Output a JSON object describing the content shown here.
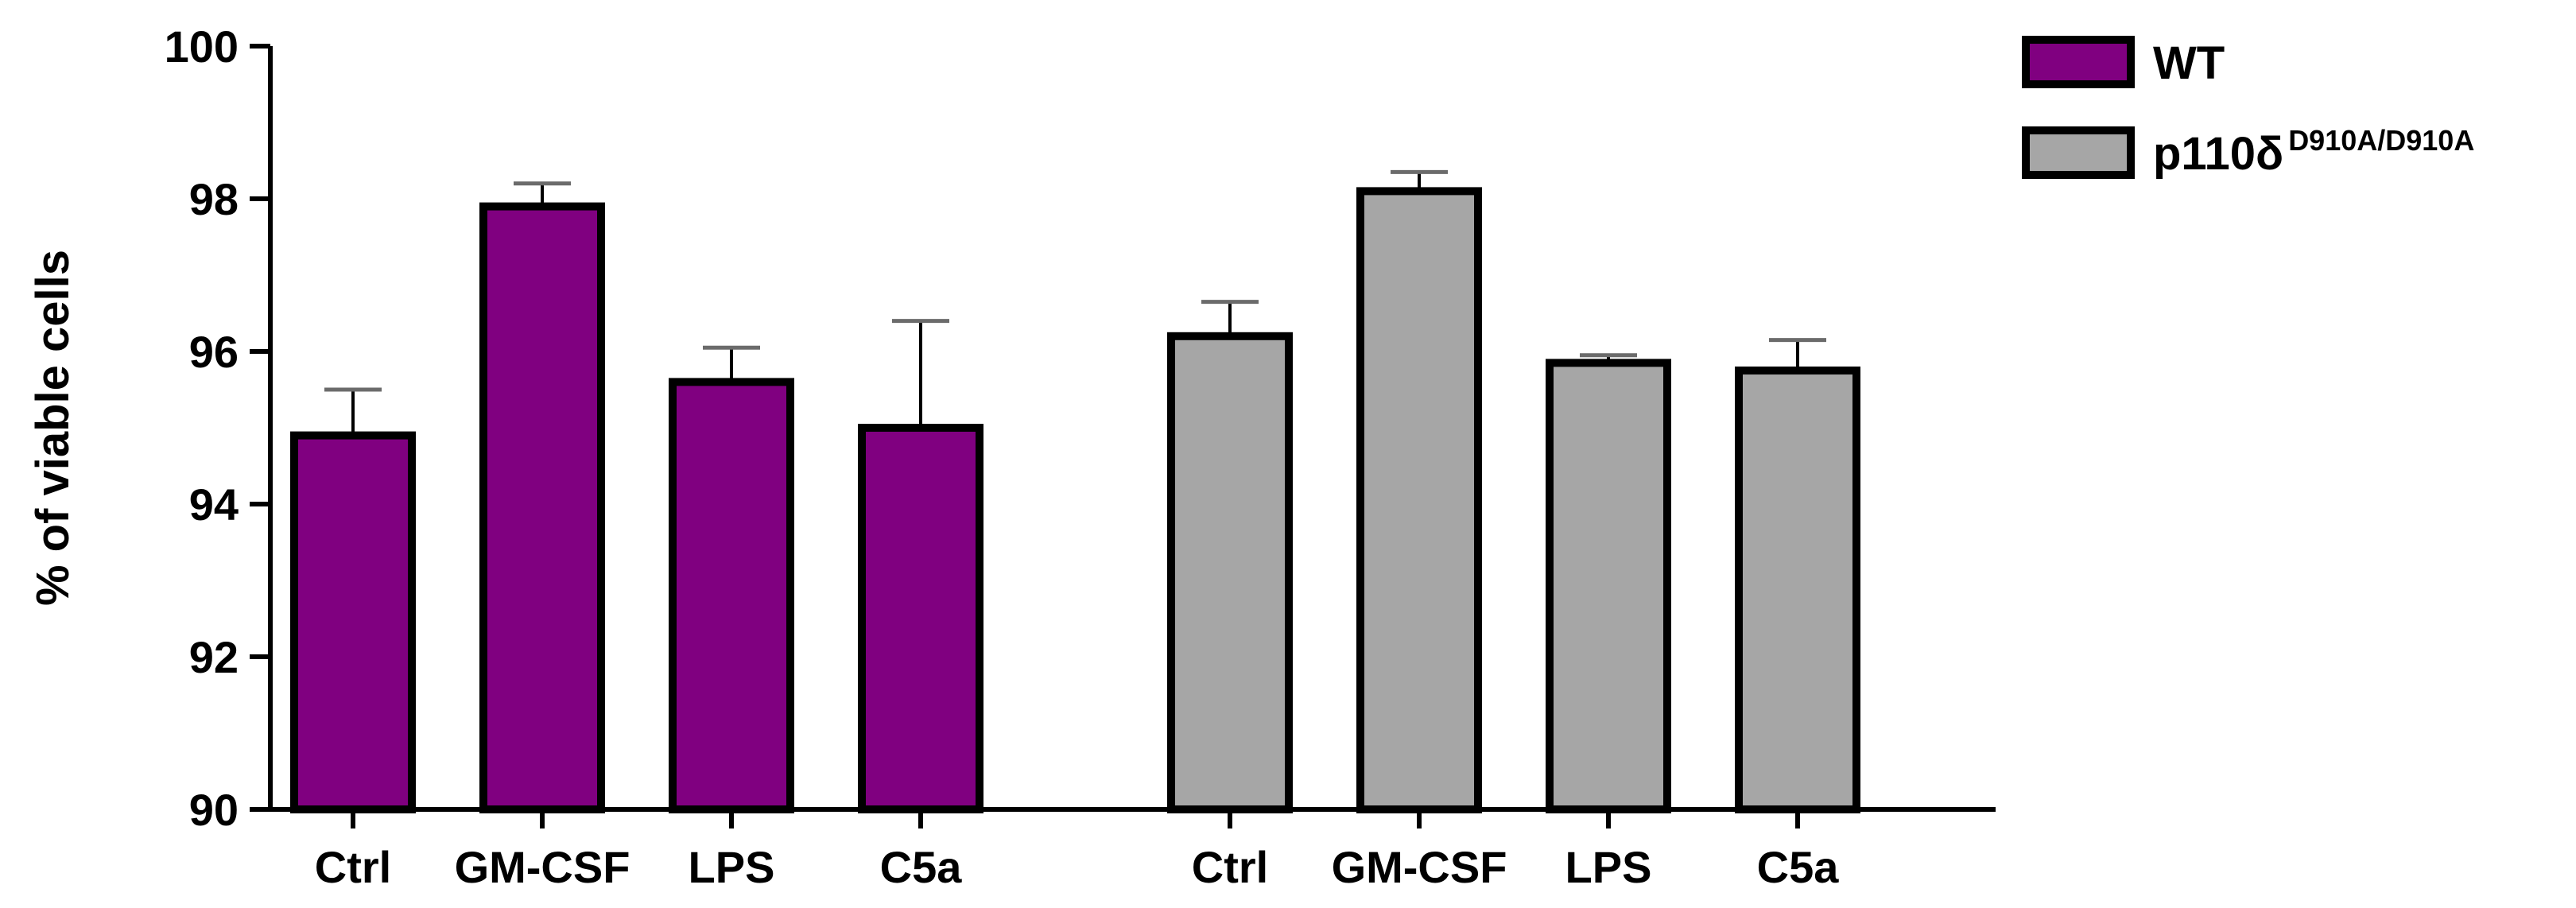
{
  "chart_data": {
    "type": "bar",
    "title": "",
    "xlabel": "",
    "ylabel": "% of viable cells",
    "ylim": [
      90,
      100
    ],
    "yticks": [
      90,
      92,
      94,
      96,
      98,
      100
    ],
    "categories": [
      "Ctrl",
      "GM-CSF",
      "LPS",
      "C5a"
    ],
    "grid": false,
    "legend_position": "top-right",
    "series": [
      {
        "name": "WT",
        "color": "#800080",
        "values": [
          94.9,
          97.9,
          95.6,
          95.0
        ],
        "error_upper": [
          95.5,
          98.2,
          96.05,
          96.4
        ]
      },
      {
        "name": "p110δ",
        "name_superscript": "D910A/D910A",
        "color": "#a6a6a6",
        "values": [
          96.2,
          98.1,
          95.85,
          95.75
        ],
        "error_upper": [
          96.65,
          98.35,
          95.95,
          96.15
        ]
      }
    ]
  }
}
